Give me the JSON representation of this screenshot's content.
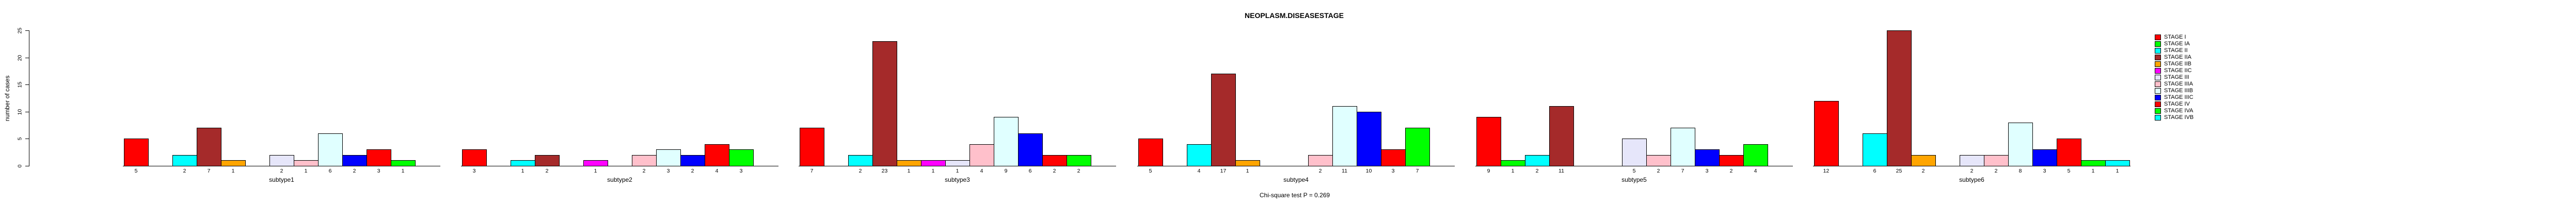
{
  "chart_data": {
    "type": "bar",
    "title": "NEOPLASM.DISEASESTAGE",
    "ylabel": "number of cases",
    "xlabel": "",
    "footnote": "Chi-square test P = 0.269",
    "ylim": [
      0,
      25
    ],
    "yticks": [
      0,
      5,
      10,
      15,
      20,
      25
    ],
    "grid": false,
    "legend_position": "right",
    "bar_value_labels_shown": true,
    "categories": [
      "subtype1",
      "subtype2",
      "subtype3",
      "subtype4",
      "subtype5",
      "subtype6"
    ],
    "series": [
      {
        "name": "STAGE I",
        "color": "#FF0000",
        "values": [
          5,
          3,
          7,
          5,
          9,
          12
        ]
      },
      {
        "name": "STAGE IA",
        "color": "#00FF00",
        "values": [
          0,
          0,
          0,
          0,
          1,
          0
        ]
      },
      {
        "name": "STAGE II",
        "color": "#00FFFF",
        "values": [
          2,
          1,
          2,
          4,
          2,
          6
        ]
      },
      {
        "name": "STAGE IIA",
        "color": "#A52A2A",
        "values": [
          7,
          2,
          23,
          17,
          11,
          25
        ]
      },
      {
        "name": "STAGE IIB",
        "color": "#FFA500",
        "values": [
          1,
          0,
          1,
          1,
          0,
          2
        ]
      },
      {
        "name": "STAGE IIC",
        "color": "#FF00FF",
        "values": [
          0,
          1,
          1,
          0,
          0,
          0
        ]
      },
      {
        "name": "STAGE III",
        "color": "#E6E6FA",
        "values": [
          2,
          0,
          1,
          0,
          5,
          2
        ]
      },
      {
        "name": "STAGE IIIA",
        "color": "#FFC0CB",
        "values": [
          1,
          2,
          4,
          2,
          2,
          2
        ]
      },
      {
        "name": "STAGE IIIB",
        "color": "#E0FFFF",
        "values": [
          6,
          3,
          9,
          11,
          7,
          8
        ]
      },
      {
        "name": "STAGE IIIC",
        "color": "#0000FF",
        "values": [
          2,
          2,
          6,
          10,
          3,
          3
        ]
      },
      {
        "name": "STAGE IV",
        "color": "#FF0000",
        "values": [
          3,
          4,
          2,
          3,
          2,
          5
        ]
      },
      {
        "name": "STAGE IVA",
        "color": "#00FF00",
        "values": [
          1,
          3,
          2,
          7,
          4,
          1
        ]
      },
      {
        "name": "STAGE IVB",
        "color": "#00FFFF",
        "values": [
          0,
          0,
          0,
          0,
          0,
          1
        ]
      }
    ]
  }
}
